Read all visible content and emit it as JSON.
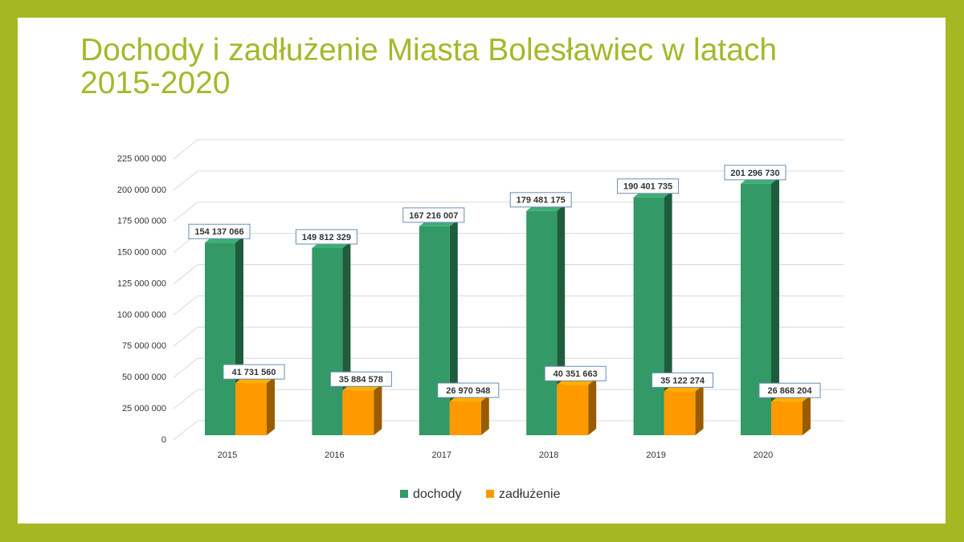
{
  "chart_data": {
    "type": "bar3d",
    "title": "Dochody i zadłużenie Miasta Bolesławiec w latach 2015-2020",
    "categories": [
      "2015",
      "2016",
      "2017",
      "2018",
      "2019",
      "2020"
    ],
    "series": [
      {
        "name": "dochody",
        "color": "#339966",
        "values": [
          154137066,
          149812329,
          167216007,
          179481175,
          190401735,
          201296730
        ],
        "value_labels": [
          "154 137 066",
          "149 812 329",
          "167 216 007",
          "179 481 175",
          "190 401 735",
          "201 296 730"
        ]
      },
      {
        "name": "zadłużenie",
        "color": "#ff9900",
        "values": [
          41731560,
          35884578,
          26970948,
          40351663,
          35122274,
          26868204
        ],
        "value_labels": [
          "41 731 560",
          "35 884 578",
          "26 970 948",
          "40 351 663",
          "35 122 274",
          "26 868 204"
        ]
      }
    ],
    "ylim": [
      0,
      225000000
    ],
    "yticks": [
      0,
      {
        "value": 25000000,
        "label": "25 000 000"
      },
      {
        "value": 50000000,
        "label": "50 000 000"
      },
      {
        "value": 75000000,
        "label": "75 000 000"
      },
      {
        "value": 100000000,
        "label": "100 000 000"
      },
      {
        "value": 125000000,
        "label": "125 000 000"
      },
      {
        "value": 150000000,
        "label": "150 000 000"
      },
      {
        "value": 175000000,
        "label": "175 000 000"
      },
      {
        "value": 200000000,
        "label": "200 000 000"
      },
      {
        "value": 225000000,
        "label": "225 000 000"
      }
    ],
    "grid": true,
    "legend": "bottom"
  }
}
